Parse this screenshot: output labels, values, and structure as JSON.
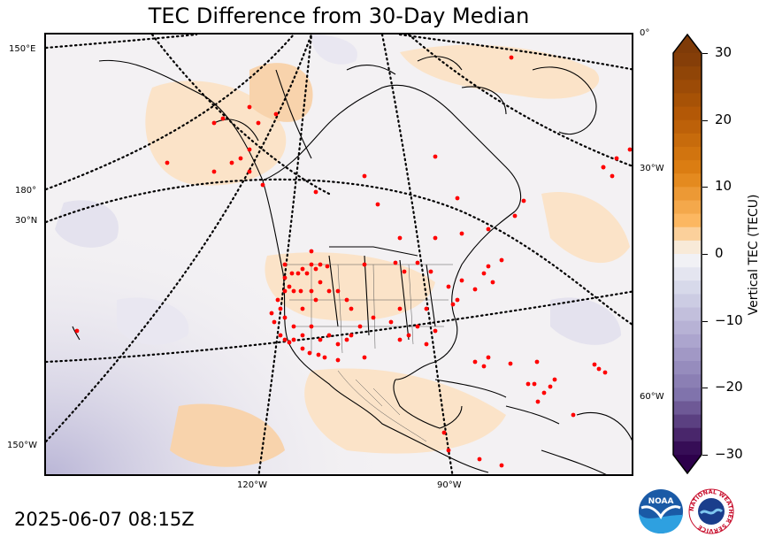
{
  "title": "TEC Difference from 30-Day Median",
  "timestamp": "2025-06-07 08:15Z",
  "map": {
    "lon_labels_bottom": [
      "120°W",
      "90°W"
    ],
    "lat_lon_labels_left": [
      "150°E",
      "180°",
      "30°N",
      "150°W"
    ],
    "lon_labels_right": [
      "0°",
      "30°W",
      "60°W"
    ],
    "station_marker_color": "#ff0000"
  },
  "colorbar": {
    "label": "Vertical TEC (TECU)",
    "ticks": [
      "30",
      "20",
      "10",
      "0",
      "−10",
      "−20",
      "−30"
    ],
    "range": [
      -30,
      30
    ],
    "colormap": "PuOr_r",
    "positive_color": "#7f3b08",
    "negative_color": "#2d004b"
  },
  "logos": {
    "noaa": "NOAA",
    "nws_ring": "NATIONAL WEATHER SERVICE"
  }
}
